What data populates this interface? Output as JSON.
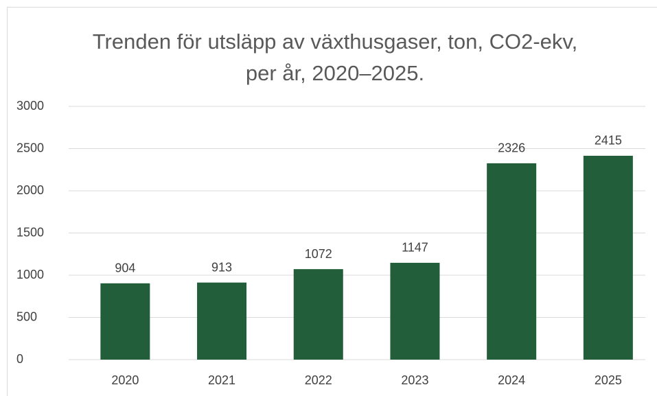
{
  "chart_data": {
    "type": "bar",
    "title": "Trenden för utsläpp av växthusgaser, ton, CO2-ekv, per år, 2020–2025.",
    "categories": [
      "2020",
      "2021",
      "2022",
      "2023",
      "2024",
      "2025"
    ],
    "values": [
      904,
      913,
      1072,
      1147,
      2326,
      2415
    ],
    "color": "#225e3a",
    "ylim": [
      0,
      3000
    ],
    "yticks": [
      0,
      500,
      1000,
      1500,
      2000,
      2500,
      3000
    ],
    "grid": true,
    "data_labels": true
  }
}
